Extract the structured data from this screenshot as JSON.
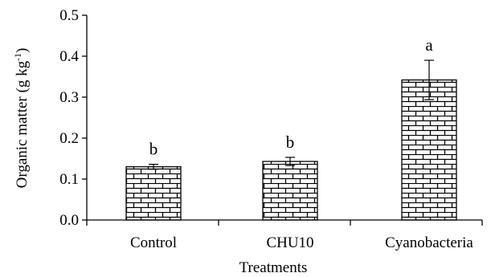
{
  "chart_data": {
    "type": "bar",
    "title": "",
    "xlabel": "Treatments",
    "ylabel": {
      "main": "Organic matter (g  kg",
      "superscript": "-1",
      "close": ")"
    },
    "categories": [
      "Control",
      "CHU10",
      "Cyanobacteria"
    ],
    "values": [
      0.13,
      0.143,
      0.342
    ],
    "errors": [
      0.006,
      0.01,
      0.048
    ],
    "significance": [
      "b",
      "b",
      "a"
    ],
    "ylim": [
      0,
      0.5
    ],
    "yticks": [
      "0.0",
      "0.1",
      "0.2",
      "0.3",
      "0.4",
      "0.5"
    ],
    "grid": false,
    "legend": "none",
    "bar_pattern": "brick",
    "colors": {
      "stroke": "#000000",
      "fill": "#ffffff"
    }
  }
}
